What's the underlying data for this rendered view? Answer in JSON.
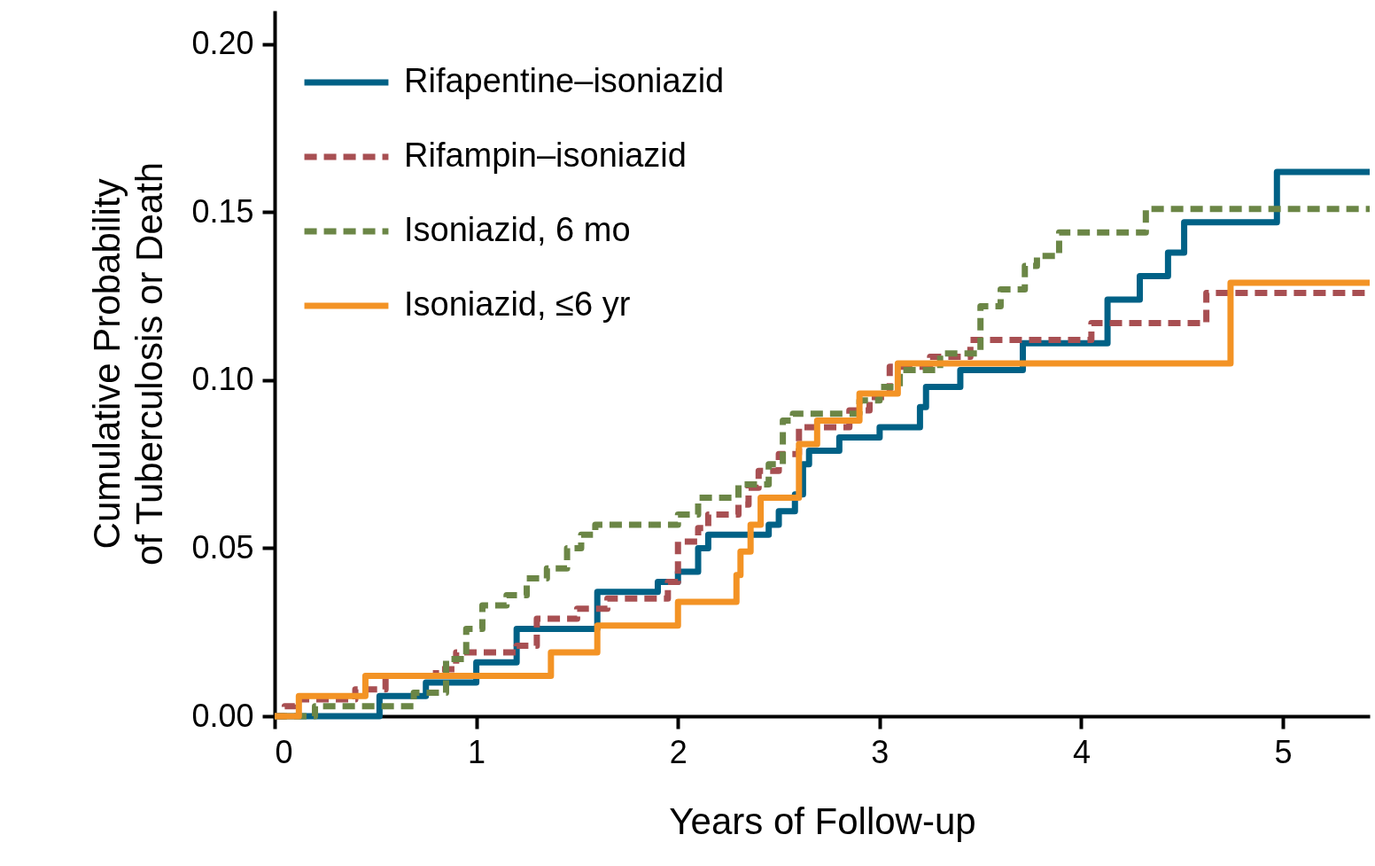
{
  "chart_data": {
    "type": "step",
    "xlabel": "Years of Follow-up",
    "ylabel": "Cumulative Probability of Tuberculosis or Death",
    "xlim": [
      0,
      5.43
    ],
    "ylim": [
      0,
      0.21
    ],
    "xticks": [
      0,
      1,
      2,
      3,
      4,
      5
    ],
    "yticks": [
      {
        "value": 0,
        "label": "0.00"
      },
      {
        "value": 0.05,
        "label": "0.05"
      },
      {
        "value": 0.1,
        "label": "0.10"
      },
      {
        "value": 0.15,
        "label": "0.15"
      },
      {
        "value": 0.2,
        "label": "0.20"
      }
    ],
    "grid": false,
    "legend": "top left",
    "marker": "none",
    "series": [
      {
        "name": "Rifapentine–isoniazid",
        "color": "#006186",
        "line_style": "solid",
        "x": [
          0,
          0.52,
          0.75,
          1.0,
          1.2,
          1.6,
          1.9,
          2.0,
          2.1,
          2.15,
          2.45,
          2.5,
          2.58,
          2.62,
          2.65,
          2.8,
          3.0,
          3.2,
          3.23,
          3.4,
          3.71,
          4.13,
          4.29,
          4.43,
          4.51,
          4.97,
          5.43
        ],
        "values": [
          0,
          0.006,
          0.01,
          0.016,
          0.026,
          0.037,
          0.04,
          0.043,
          0.05,
          0.054,
          0.057,
          0.061,
          0.066,
          0.075,
          0.079,
          0.083,
          0.086,
          0.092,
          0.098,
          0.103,
          0.111,
          0.124,
          0.131,
          0.138,
          0.147,
          0.162,
          0.162
        ]
      },
      {
        "name": "Rifampin–isoniazid",
        "color": "#a84f52",
        "line_style": "dashed",
        "x": [
          0,
          0.05,
          0.1,
          0.4,
          0.55,
          0.8,
          0.9,
          1.2,
          1.3,
          1.5,
          1.65,
          1.95,
          2.0,
          2.1,
          2.15,
          2.3,
          2.35,
          2.4,
          2.5,
          2.6,
          2.85,
          2.95,
          3.05,
          3.25,
          3.45,
          4.05,
          4.62,
          5.43
        ],
        "values": [
          0,
          0.003,
          0.005,
          0.008,
          0.012,
          0.014,
          0.019,
          0.021,
          0.029,
          0.032,
          0.035,
          0.04,
          0.052,
          0.056,
          0.06,
          0.063,
          0.068,
          0.073,
          0.078,
          0.086,
          0.091,
          0.095,
          0.104,
          0.107,
          0.112,
          0.117,
          0.126,
          0.126
        ]
      },
      {
        "name": "Isoniazid, 6 mo",
        "color": "#6b8646",
        "line_style": "dashed",
        "x": [
          0,
          0.2,
          0.69,
          0.85,
          0.95,
          1.03,
          1.15,
          1.25,
          1.35,
          1.45,
          1.52,
          1.59,
          2.0,
          2.1,
          2.3,
          2.45,
          2.52,
          2.57,
          2.9,
          3.0,
          3.1,
          3.3,
          3.5,
          3.6,
          3.72,
          3.78,
          3.89,
          4.32,
          5.43
        ],
        "values": [
          0,
          0.003,
          0.007,
          0.017,
          0.026,
          0.033,
          0.036,
          0.041,
          0.044,
          0.05,
          0.054,
          0.057,
          0.06,
          0.065,
          0.069,
          0.075,
          0.088,
          0.09,
          0.094,
          0.098,
          0.103,
          0.108,
          0.122,
          0.127,
          0.134,
          0.137,
          0.144,
          0.151,
          0.151
        ]
      },
      {
        "name": "Isoniazid, ≤6 yr",
        "color": "#f39325",
        "line_style": "solid",
        "x": [
          0,
          0.12,
          0.45,
          1.37,
          1.6,
          2.0,
          2.29,
          2.31,
          2.36,
          2.41,
          2.6,
          2.69,
          2.9,
          3.09,
          4.74,
          5.43
        ],
        "values": [
          0,
          0.006,
          0.012,
          0.019,
          0.027,
          0.034,
          0.042,
          0.049,
          0.057,
          0.065,
          0.081,
          0.088,
          0.096,
          0.105,
          0.129,
          0.129
        ]
      }
    ]
  }
}
